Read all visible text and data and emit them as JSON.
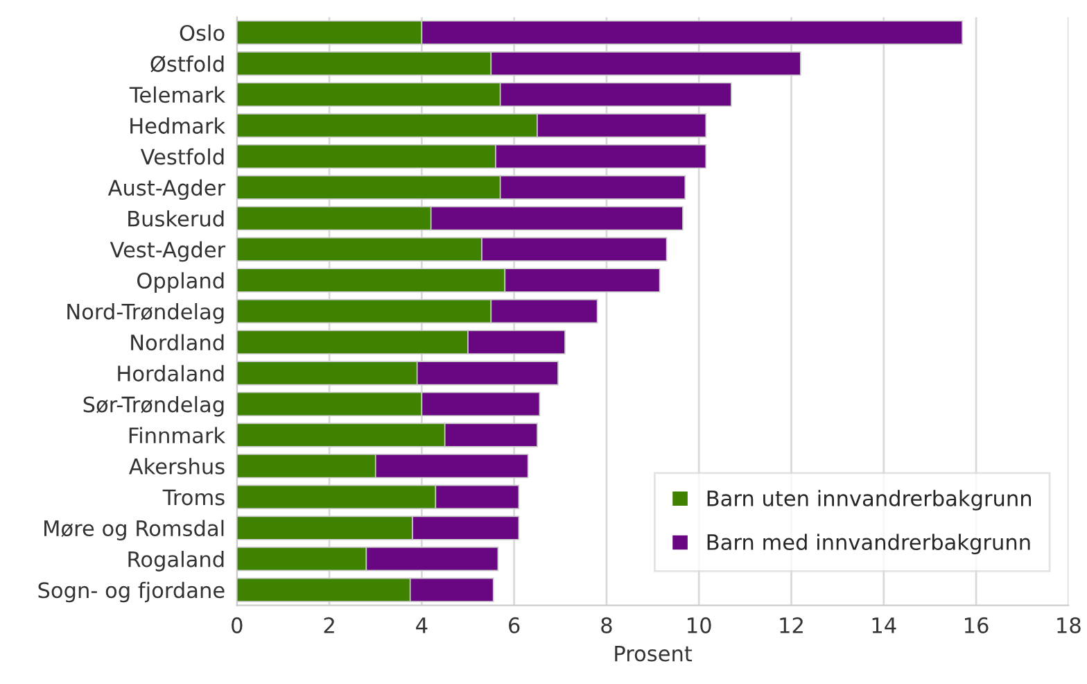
{
  "chart_data": {
    "type": "bar",
    "orientation": "horizontal",
    "stacked": true,
    "xlabel": "Prosent",
    "categories": [
      "Oslo",
      "Østfold",
      "Telemark",
      "Hedmark",
      "Vestfold",
      "Aust-Agder",
      "Buskerud",
      "Vest-Agder",
      "Oppland",
      "Nord-Trøndelag",
      "Nordland",
      "Hordaland",
      "Sør-Trøndelag",
      "Finnmark",
      "Akershus",
      "Troms",
      "Møre og Romsdal",
      "Rogaland",
      "Sogn- og fjordane"
    ],
    "series": [
      {
        "name": "Barn uten innvandrerbakgrunn",
        "color": "#3f8200",
        "values": [
          4.0,
          5.5,
          5.7,
          6.5,
          5.6,
          5.7,
          4.2,
          5.3,
          5.8,
          5.5,
          5.0,
          3.9,
          4.0,
          4.5,
          3.0,
          4.3,
          3.8,
          2.8,
          3.75
        ]
      },
      {
        "name": "Barn med innvandrerbakgrunn",
        "color": "#690783",
        "values": [
          11.7,
          6.7,
          5.0,
          3.65,
          4.55,
          4.0,
          5.45,
          4.0,
          3.35,
          2.3,
          2.1,
          3.05,
          2.55,
          2.0,
          3.3,
          1.8,
          2.3,
          2.85,
          1.8
        ]
      }
    ],
    "xlim": [
      0,
      18
    ],
    "xticks": [
      0,
      2,
      4,
      6,
      8,
      10,
      12,
      14,
      16,
      18
    ],
    "grid": "x",
    "legend": "bottom right"
  }
}
